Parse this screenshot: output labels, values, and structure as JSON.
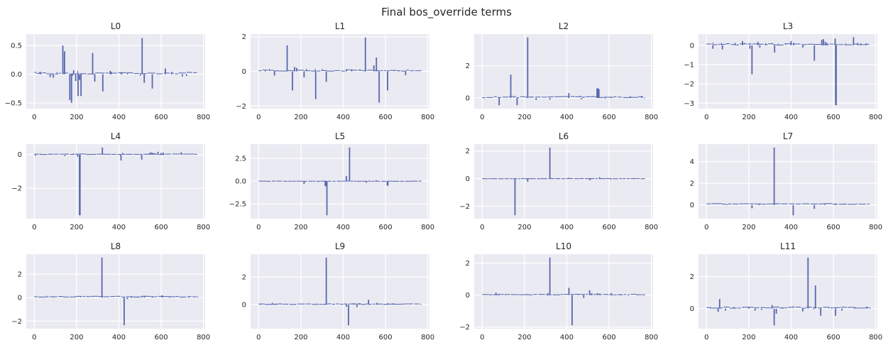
{
  "figure": {
    "title": "Final bos_override terms"
  },
  "chart_data": {
    "type": "bar",
    "title": "Final bos_override terms",
    "grid": "on",
    "legend": "none",
    "layout_hint": "3 rows x 4 columns of vertical-spike (stem) subplots, seaborn darkgrid style",
    "xlabel": "",
    "ylabel": "",
    "xlim": [
      -38,
      808
    ],
    "xticks": [
      0,
      200,
      400,
      600,
      800
    ],
    "x_range_of_data": [
      0,
      770
    ],
    "colors": {
      "bar": "#5767ae",
      "plot_bg": "#eaeaf2",
      "grid": "#ffffff",
      "text": "#262626",
      "fig_bg": "#ffffff"
    },
    "plots": [
      {
        "label": "L0",
        "ylim": [
          -0.6,
          0.7
        ],
        "ytick_values": [
          0.5,
          0.0,
          -0.5
        ],
        "ytick_labels": [
          "0.5",
          "0.0",
          "−0.5"
        ],
        "baseline": 0.015,
        "noise": 0.03,
        "spikes": [
          [
            30,
            0.04
          ],
          [
            75,
            -0.05
          ],
          [
            90,
            -0.06
          ],
          [
            135,
            0.5
          ],
          [
            143,
            0.4
          ],
          [
            168,
            -0.45
          ],
          [
            176,
            -0.5
          ],
          [
            186,
            0.07
          ],
          [
            196,
            -0.12
          ],
          [
            207,
            -0.38
          ],
          [
            214,
            -0.1
          ],
          [
            221,
            -0.38
          ],
          [
            276,
            0.37
          ],
          [
            286,
            -0.13
          ],
          [
            324,
            -0.3
          ],
          [
            359,
            0.06
          ],
          [
            364,
            0.04
          ],
          [
            410,
            0.03
          ],
          [
            440,
            0.03
          ],
          [
            510,
            0.63
          ],
          [
            520,
            -0.15
          ],
          [
            558,
            -0.25
          ],
          [
            620,
            0.1
          ],
          [
            650,
            0.04
          ],
          [
            700,
            -0.04
          ],
          [
            720,
            -0.03
          ]
        ]
      },
      {
        "label": "L1",
        "ylim": [
          -2.15,
          2.15
        ],
        "ytick_values": [
          2,
          0,
          -2
        ],
        "ytick_labels": [
          "2",
          "0",
          "−2"
        ],
        "baseline": 0.05,
        "noise": 0.06,
        "spikes": [
          [
            75,
            -0.25
          ],
          [
            135,
            1.5
          ],
          [
            160,
            -1.1
          ],
          [
            170,
            0.25
          ],
          [
            180,
            0.2
          ],
          [
            215,
            -0.35
          ],
          [
            270,
            -1.6
          ],
          [
            320,
            -0.6
          ],
          [
            415,
            0.12
          ],
          [
            440,
            0.12
          ],
          [
            505,
            1.95
          ],
          [
            545,
            0.35
          ],
          [
            557,
            0.8
          ],
          [
            570,
            -1.8
          ],
          [
            610,
            -1.1
          ],
          [
            695,
            -0.22
          ]
        ]
      },
      {
        "label": "L2",
        "ylim": [
          -0.66,
          3.96
        ],
        "ytick_values": [
          2,
          0
        ],
        "ytick_labels": [
          "2",
          "0"
        ],
        "baseline": 0.05,
        "noise": 0.08,
        "spikes": [
          [
            80,
            -0.45
          ],
          [
            135,
            1.45
          ],
          [
            165,
            -0.45
          ],
          [
            215,
            3.75
          ],
          [
            255,
            -0.12
          ],
          [
            320,
            -0.1
          ],
          [
            410,
            0.3
          ],
          [
            470,
            -0.08
          ],
          [
            545,
            0.6,
            3
          ],
          [
            552,
            0.55
          ],
          [
            610,
            0.08
          ],
          [
            700,
            0.1
          ],
          [
            755,
            0.12
          ]
        ]
      },
      {
        "label": "L3",
        "ylim": [
          -3.28,
          0.58
        ],
        "ytick_values": [
          0,
          -1,
          -2,
          -3
        ],
        "ytick_labels": [
          "0",
          "−1",
          "−2",
          "−3"
        ],
        "baseline": 0.05,
        "noise": 0.06,
        "spikes": [
          [
            30,
            -0.18
          ],
          [
            75,
            -0.22
          ],
          [
            135,
            0.12
          ],
          [
            170,
            0.22
          ],
          [
            205,
            -0.18
          ],
          [
            215,
            -1.5
          ],
          [
            243,
            0.18
          ],
          [
            252,
            -0.12
          ],
          [
            280,
            0.1
          ],
          [
            322,
            -0.38
          ],
          [
            400,
            0.22
          ],
          [
            412,
            0.12
          ],
          [
            455,
            -0.12
          ],
          [
            510,
            -0.8
          ],
          [
            545,
            0.28
          ],
          [
            553,
            0.32
          ],
          [
            562,
            0.18
          ],
          [
            570,
            0.12
          ],
          [
            608,
            0.35
          ],
          [
            612,
            -3.1,
            2.5
          ],
          [
            695,
            0.42
          ],
          [
            715,
            0.12
          ],
          [
            730,
            0.1
          ],
          [
            752,
            0.08
          ]
        ]
      },
      {
        "label": "L4",
        "ylim": [
          -3.8,
          0.62
        ],
        "ytick_values": [
          0,
          -2
        ],
        "ytick_labels": [
          "0",
          "−2"
        ],
        "baseline": 0.02,
        "noise": 0.03,
        "spikes": [
          [
            5,
            -0.07
          ],
          [
            30,
            0.05
          ],
          [
            75,
            0.05
          ],
          [
            145,
            -0.08
          ],
          [
            205,
            -0.12
          ],
          [
            215,
            -3.6,
            2.5
          ],
          [
            322,
            0.42
          ],
          [
            410,
            -0.35
          ],
          [
            418,
            0.1
          ],
          [
            508,
            -0.3
          ],
          [
            545,
            0.1
          ],
          [
            552,
            0.13
          ],
          [
            560,
            0.1
          ],
          [
            568,
            0.08
          ],
          [
            585,
            0.16
          ],
          [
            600,
            0.1
          ],
          [
            610,
            0.12
          ],
          [
            695,
            0.14
          ]
        ]
      },
      {
        "label": "L5",
        "ylim": [
          -4.12,
          4.07
        ],
        "ytick_values": [
          2.5,
          0.0,
          -2.5
        ],
        "ytick_labels": [
          "2.5",
          "0.0",
          "−2.5"
        ],
        "baseline": 0.0,
        "noise": 0.02,
        "spikes": [
          [
            215,
            -0.3
          ],
          [
            318,
            -0.55,
            3.5
          ],
          [
            323,
            -3.75
          ],
          [
            415,
            0.55
          ],
          [
            430,
            3.7
          ],
          [
            510,
            -0.18
          ],
          [
            555,
            0.12
          ],
          [
            610,
            -0.5,
            2.5
          ]
        ]
      },
      {
        "label": "L6",
        "ylim": [
          -2.9,
          2.5
        ],
        "ytick_values": [
          2,
          0,
          -2
        ],
        "ytick_labels": [
          "2",
          "0",
          "−2"
        ],
        "baseline": 0.0,
        "noise": 0.012,
        "spikes": [
          [
            155,
            -2.65
          ],
          [
            215,
            -0.22
          ],
          [
            320,
            2.25
          ],
          [
            410,
            0.06
          ],
          [
            510,
            -0.12
          ],
          [
            555,
            0.1
          ],
          [
            610,
            -0.06
          ]
        ]
      },
      {
        "label": "L7",
        "ylim": [
          -1.26,
          5.61
        ],
        "ytick_values": [
          4,
          2,
          0
        ],
        "ytick_labels": [
          "4",
          "2",
          "0"
        ],
        "baseline": 0.1,
        "noise": 0.05,
        "spikes": [
          [
            100,
            0.05
          ],
          [
            215,
            -0.3
          ],
          [
            250,
            0.06
          ],
          [
            320,
            5.3
          ],
          [
            410,
            -0.95
          ],
          [
            510,
            -0.35
          ],
          [
            560,
            0.08
          ],
          [
            610,
            0.12
          ],
          [
            700,
            0.06
          ]
        ]
      },
      {
        "label": "L8",
        "ylim": [
          -2.64,
          3.69
        ],
        "ytick_values": [
          2,
          0,
          -2
        ],
        "ytick_labels": [
          "2",
          "0",
          "−2"
        ],
        "baseline": 0.08,
        "noise": 0.06,
        "spikes": [
          [
            320,
            3.4
          ],
          [
            425,
            -2.35
          ],
          [
            440,
            -0.12
          ],
          [
            460,
            0.12
          ],
          [
            490,
            0.1
          ],
          [
            520,
            0.16
          ],
          [
            560,
            0.1
          ],
          [
            605,
            0.2
          ],
          [
            640,
            0.08
          ],
          [
            700,
            0.06
          ]
        ]
      },
      {
        "label": "L9",
        "ylim": [
          -1.75,
          3.65
        ],
        "ytick_values": [
          2,
          0
        ],
        "ytick_labels": [
          "2",
          "0"
        ],
        "baseline": 0.03,
        "noise": 0.04,
        "spikes": [
          [
            65,
            0.12
          ],
          [
            80,
            0.06
          ],
          [
            215,
            0.05
          ],
          [
            320,
            3.4
          ],
          [
            415,
            -0.15
          ],
          [
            425,
            -1.5
          ],
          [
            448,
            0.1
          ],
          [
            465,
            -0.18
          ],
          [
            478,
            0.1
          ],
          [
            520,
            0.35
          ],
          [
            560,
            0.12
          ],
          [
            610,
            0.1
          ],
          [
            635,
            0.08
          ]
        ]
      },
      {
        "label": "L10",
        "ylim": [
          -2.11,
          2.56
        ],
        "ytick_values": [
          2,
          0,
          -2
        ],
        "ytick_labels": [
          "2",
          "0",
          "−2"
        ],
        "baseline": 0.03,
        "noise": 0.03,
        "spikes": [
          [
            65,
            0.15
          ],
          [
            80,
            0.08
          ],
          [
            215,
            0.06
          ],
          [
            310,
            0.12
          ],
          [
            320,
            2.35
          ],
          [
            410,
            0.45
          ],
          [
            425,
            -1.9
          ],
          [
            480,
            -0.18
          ],
          [
            508,
            0.3
          ],
          [
            518,
            0.12
          ],
          [
            545,
            0.12
          ],
          [
            556,
            0.1
          ],
          [
            610,
            0.12
          ]
        ]
      },
      {
        "label": "L11",
        "ylim": [
          -1.26,
          3.41
        ],
        "ytick_values": [
          2,
          0
        ],
        "ytick_labels": [
          "2",
          "0"
        ],
        "baseline": 0.06,
        "noise": 0.07,
        "spikes": [
          [
            20,
            0.08
          ],
          [
            55,
            -0.2
          ],
          [
            62,
            0.6
          ],
          [
            90,
            -0.12
          ],
          [
            130,
            0.1
          ],
          [
            200,
            0.12
          ],
          [
            230,
            -0.12
          ],
          [
            260,
            -0.08
          ],
          [
            310,
            0.22
          ],
          [
            320,
            -1.05
          ],
          [
            330,
            -0.32
          ],
          [
            360,
            0.08
          ],
          [
            455,
            -0.18
          ],
          [
            480,
            3.2
          ],
          [
            515,
            1.45
          ],
          [
            540,
            -0.45
          ],
          [
            610,
            -0.45
          ],
          [
            640,
            -0.12
          ],
          [
            700,
            0.1
          ],
          [
            758,
            0.12
          ]
        ]
      }
    ]
  }
}
